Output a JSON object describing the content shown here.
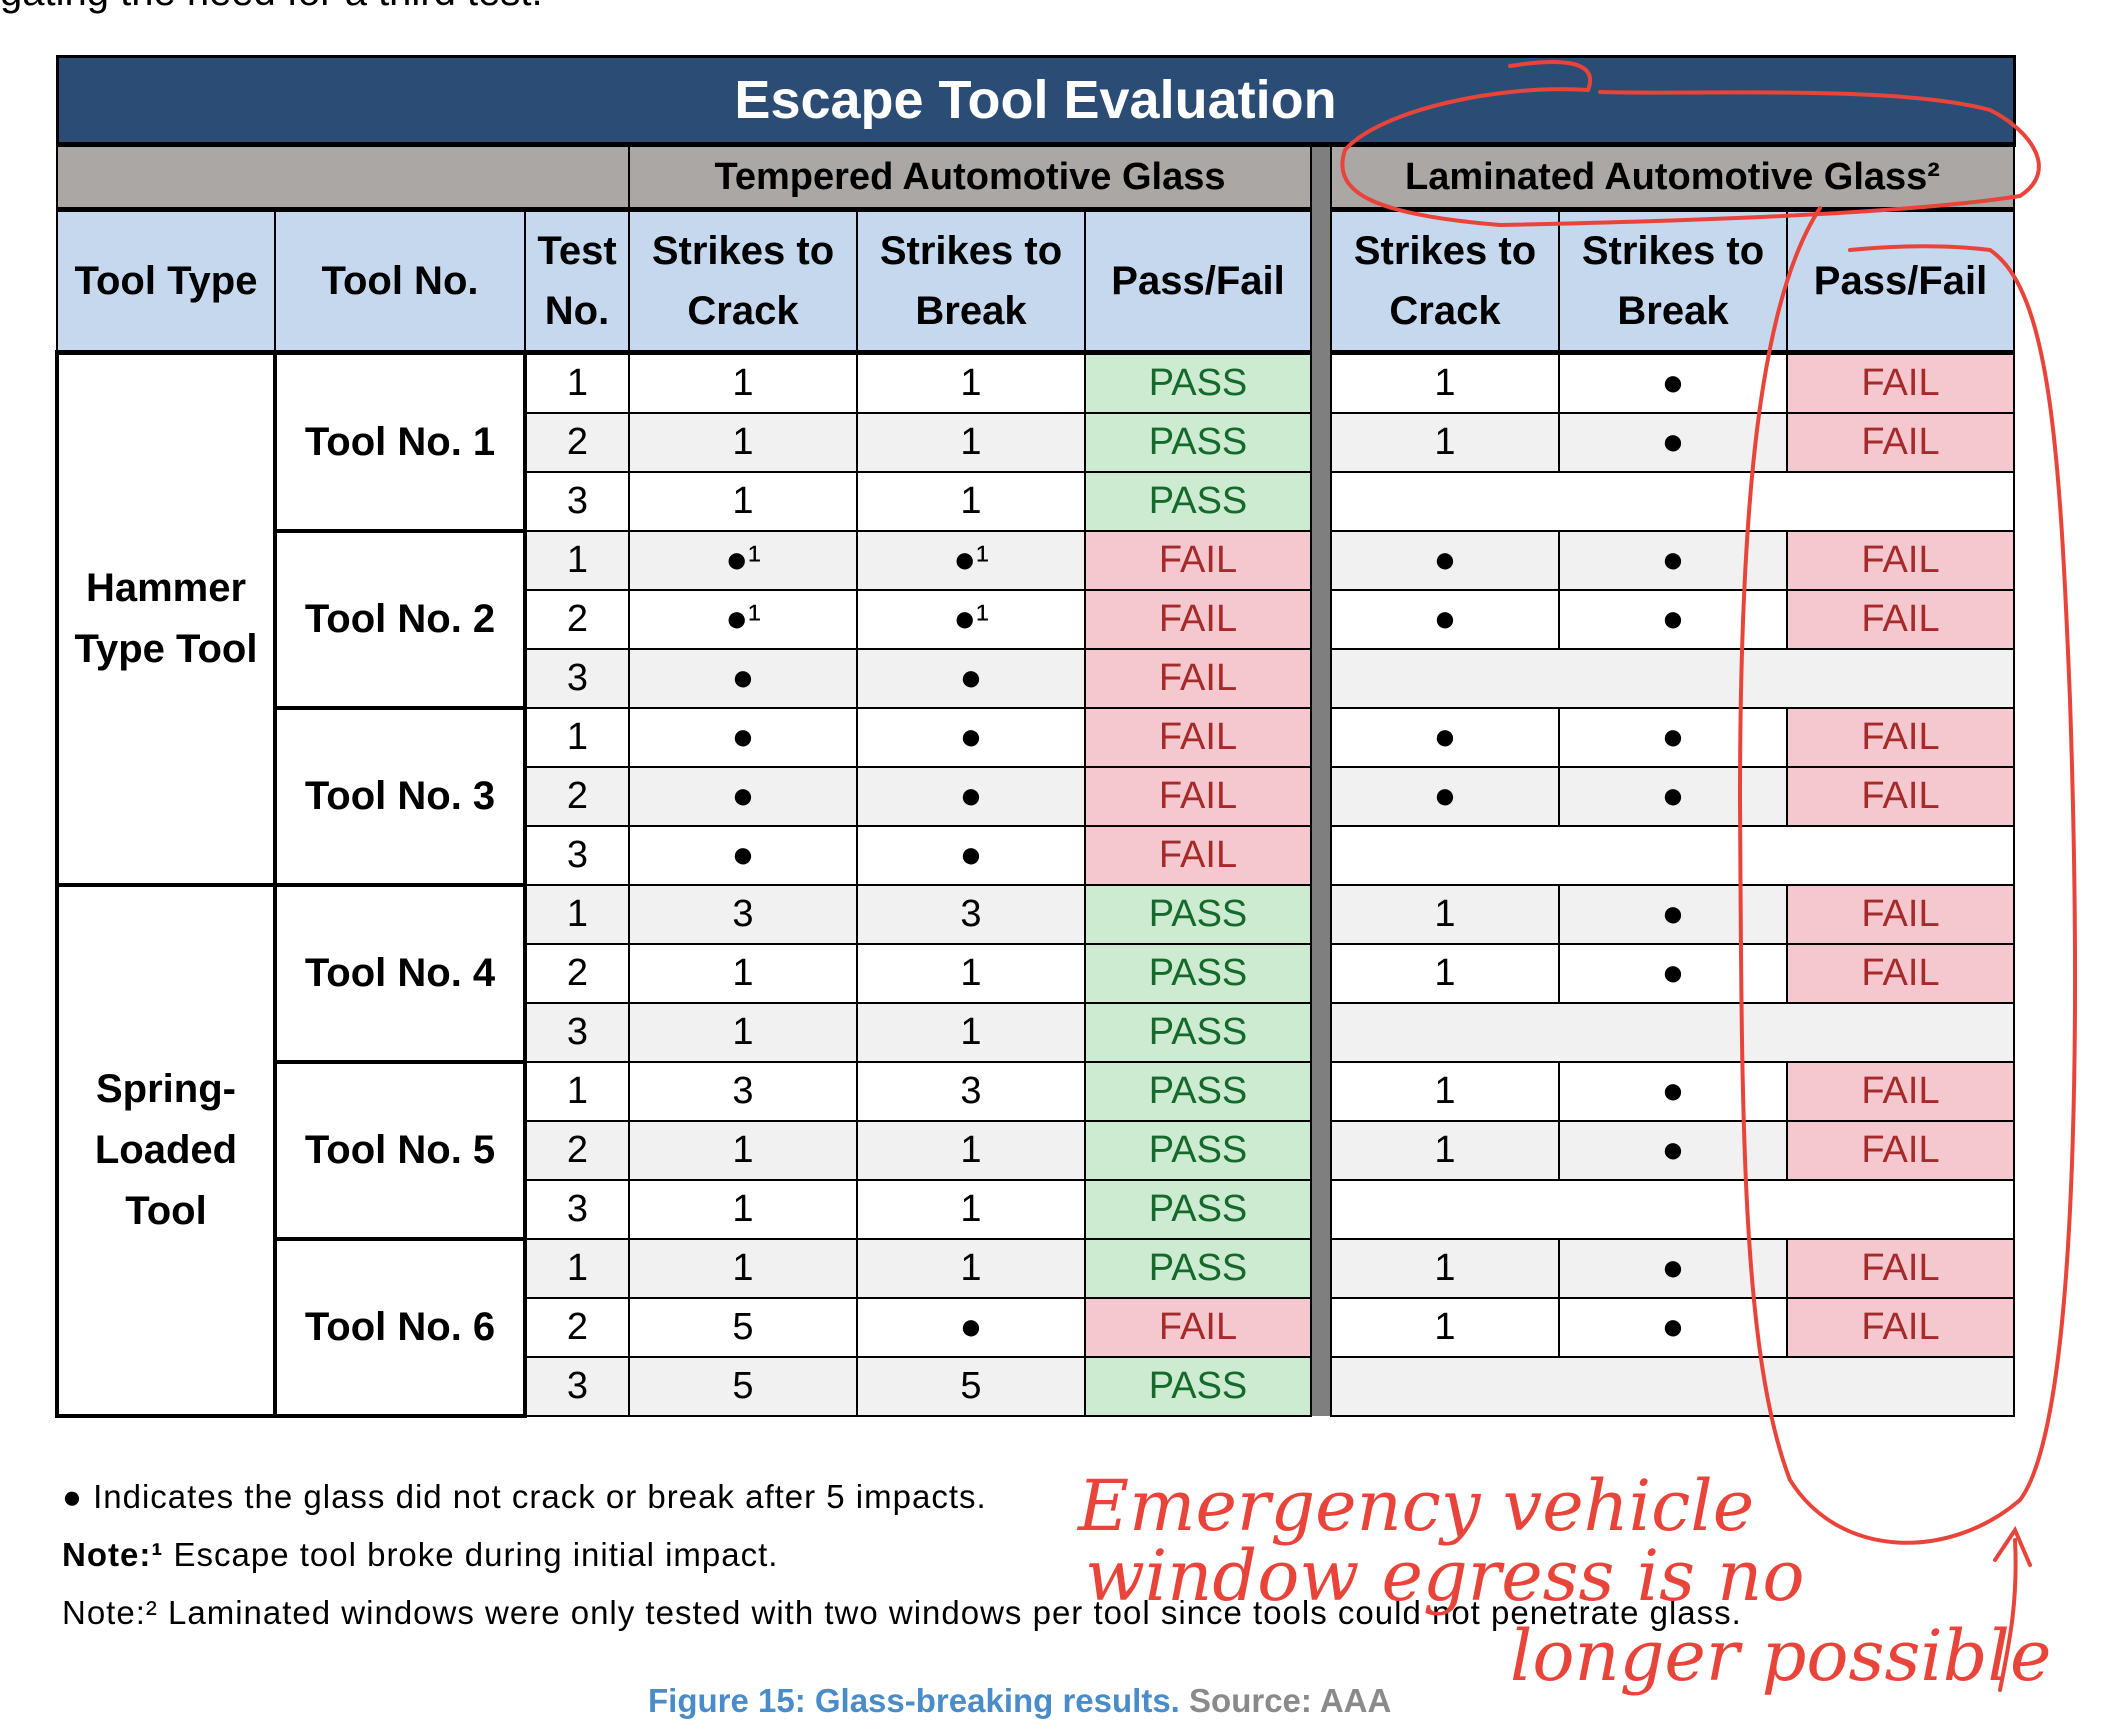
{
  "intro_fragment": "gating the need for a third test.",
  "table": {
    "title": "Escape Tool Evaluation",
    "groups": {
      "tempered": "Tempered Automotive Glass",
      "laminated": "Laminated Automotive Glass²"
    },
    "headers": {
      "tool_type": "Tool Type",
      "tool_no": "Tool No.",
      "test_no_1": "Test",
      "test_no_2": "No.",
      "strikes_crack_1": "Strikes to",
      "strikes_crack_2": "Crack",
      "strikes_break_1": "Strikes to",
      "strikes_break_2": "Break",
      "pass_fail": "Pass/Fail"
    },
    "tool_types": {
      "hammer_1": "Hammer",
      "hammer_2": "Type Tool",
      "spring_1": "Spring-",
      "spring_2": "Loaded",
      "spring_3": "Tool"
    },
    "tools": [
      {
        "name": "Tool No. 1",
        "tests": [
          {
            "no": "1",
            "t_crack": "1",
            "t_break": "1",
            "t_pf": "PASS",
            "l_crack": "1",
            "l_break": "●",
            "l_pf": "FAIL"
          },
          {
            "no": "2",
            "t_crack": "1",
            "t_break": "1",
            "t_pf": "PASS",
            "l_crack": "1",
            "l_break": "●",
            "l_pf": "FAIL"
          },
          {
            "no": "3",
            "t_crack": "1",
            "t_break": "1",
            "t_pf": "PASS"
          }
        ]
      },
      {
        "name": "Tool No. 2",
        "tests": [
          {
            "no": "1",
            "t_crack": "●¹",
            "t_break": "●¹",
            "t_pf": "FAIL",
            "l_crack": "●",
            "l_break": "●",
            "l_pf": "FAIL"
          },
          {
            "no": "2",
            "t_crack": "●¹",
            "t_break": "●¹",
            "t_pf": "FAIL",
            "l_crack": "●",
            "l_break": "●",
            "l_pf": "FAIL"
          },
          {
            "no": "3",
            "t_crack": "●",
            "t_break": "●",
            "t_pf": "FAIL"
          }
        ]
      },
      {
        "name": "Tool No. 3",
        "tests": [
          {
            "no": "1",
            "t_crack": "●",
            "t_break": "●",
            "t_pf": "FAIL",
            "l_crack": "●",
            "l_break": "●",
            "l_pf": "FAIL"
          },
          {
            "no": "2",
            "t_crack": "●",
            "t_break": "●",
            "t_pf": "FAIL",
            "l_crack": "●",
            "l_break": "●",
            "l_pf": "FAIL"
          },
          {
            "no": "3",
            "t_crack": "●",
            "t_break": "●",
            "t_pf": "FAIL"
          }
        ]
      },
      {
        "name": "Tool No. 4",
        "tests": [
          {
            "no": "1",
            "t_crack": "3",
            "t_break": "3",
            "t_pf": "PASS",
            "l_crack": "1",
            "l_break": "●",
            "l_pf": "FAIL"
          },
          {
            "no": "2",
            "t_crack": "1",
            "t_break": "1",
            "t_pf": "PASS",
            "l_crack": "1",
            "l_break": "●",
            "l_pf": "FAIL"
          },
          {
            "no": "3",
            "t_crack": "1",
            "t_break": "1",
            "t_pf": "PASS"
          }
        ]
      },
      {
        "name": "Tool No. 5",
        "tests": [
          {
            "no": "1",
            "t_crack": "3",
            "t_break": "3",
            "t_pf": "PASS",
            "l_crack": "1",
            "l_break": "●",
            "l_pf": "FAIL"
          },
          {
            "no": "2",
            "t_crack": "1",
            "t_break": "1",
            "t_pf": "PASS",
            "l_crack": "1",
            "l_break": "●",
            "l_pf": "FAIL"
          },
          {
            "no": "3",
            "t_crack": "1",
            "t_break": "1",
            "t_pf": "PASS"
          }
        ]
      },
      {
        "name": "Tool No. 6",
        "tests": [
          {
            "no": "1",
            "t_crack": "1",
            "t_break": "1",
            "t_pf": "PASS",
            "l_crack": "1",
            "l_break": "●",
            "l_pf": "FAIL"
          },
          {
            "no": "2",
            "t_crack": "5",
            "t_break": "●",
            "t_pf": "FAIL",
            "l_crack": "1",
            "l_break": "●",
            "l_pf": "FAIL"
          },
          {
            "no": "3",
            "t_crack": "5",
            "t_break": "5",
            "t_pf": "PASS"
          }
        ]
      }
    ]
  },
  "notes": {
    "dot_note": "● Indicates the glass did not crack or break after 5 impacts.",
    "note1_label": "Note:¹",
    "note1_text": " Escape tool broke during initial impact.",
    "note2": "Note:² Laminated windows were only tested with two windows per tool since tools could not penetrate glass."
  },
  "caption": {
    "figure": "Figure 15: Glass-breaking  results.",
    "source": " Source: AAA"
  },
  "annotation": {
    "line1": "Emergency vehicle",
    "line2": "window egress is no",
    "line3": "longer possible",
    "color": "#e8443a"
  },
  "colors": {
    "title_bg": "#2b4d75",
    "header_bg": "#c5d8ee",
    "group_bg": "#aaa7a4",
    "pass_bg": "#cdebd1",
    "fail_bg": "#f5c8cf"
  }
}
